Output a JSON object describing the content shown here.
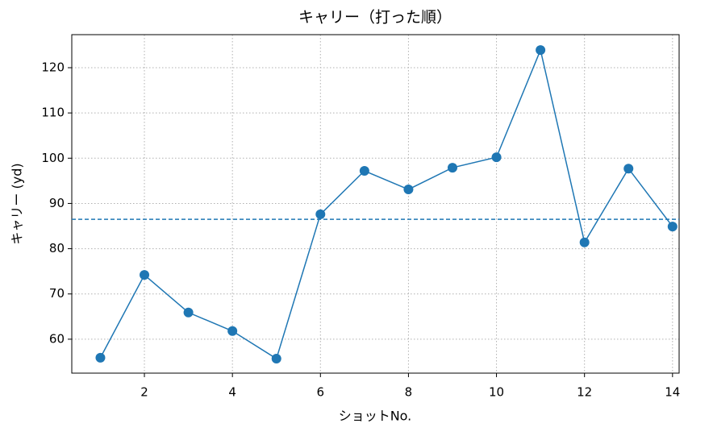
{
  "chart_data": {
    "type": "line",
    "title": "キャリー（打った順）",
    "x_label": "ショットNo.",
    "y_label": "キャリー (yd)",
    "x": [
      1,
      2,
      3,
      4,
      5,
      6,
      7,
      8,
      9,
      10,
      11,
      12,
      13,
      14
    ],
    "series": [
      {
        "color": "#1f77b4",
        "values": [
          55.9,
          74.2,
          65.9,
          61.8,
          55.7,
          87.6,
          97.2,
          93.1,
          97.9,
          100.2,
          123.9,
          81.4,
          97.7,
          84.9
        ]
      }
    ],
    "hline": 86.5,
    "xlim": [
      0.35,
      14.15
    ],
    "xticks": [
      2,
      4,
      6,
      8,
      10,
      12,
      14
    ],
    "ylim": [
      52.5,
      127.3
    ],
    "yticks": [
      60,
      70,
      80,
      90,
      100,
      110,
      120
    ],
    "grid": true
  }
}
